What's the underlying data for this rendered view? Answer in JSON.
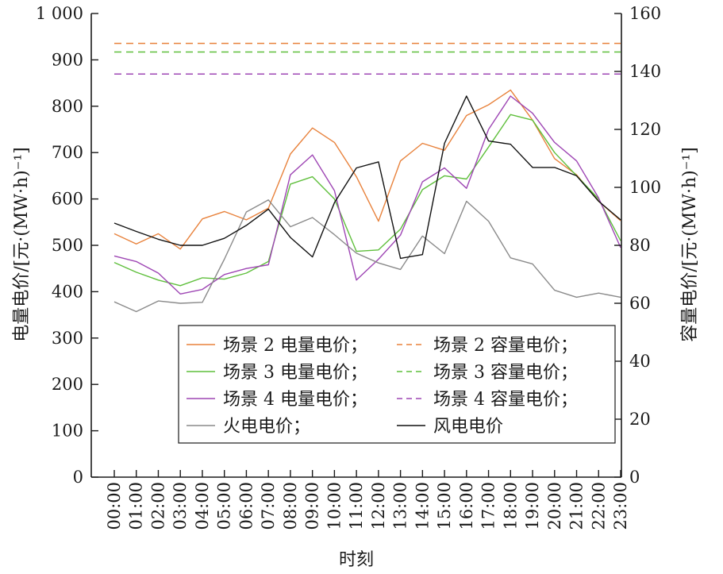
{
  "chart_data": {
    "type": "line",
    "xlabel": "时刻",
    "ylabel_left": "电量电价/[元·(MW·h)⁻¹]",
    "ylabel_right": "容量电价/[元·(MW·h)⁻¹]",
    "ylim_left": [
      0,
      1000
    ],
    "ylim_right": [
      0,
      160
    ],
    "yticks_left": [
      "0",
      "100",
      "200",
      "300",
      "400",
      "500",
      "600",
      "700",
      "800",
      "900",
      "1 000"
    ],
    "yticks_right": [
      "0",
      "20",
      "40",
      "60",
      "80",
      "100",
      "120",
      "140",
      "160"
    ],
    "categories": [
      "00:00",
      "01:00",
      "02:00",
      "03:00",
      "04:00",
      "05:00",
      "06:00",
      "07:00",
      "08:00",
      "09:00",
      "10:00",
      "11:00",
      "12:00",
      "13:00",
      "14:00",
      "15:00",
      "16:00",
      "17:00",
      "18:00",
      "19:00",
      "20:00",
      "21:00",
      "22:00",
      "23:00"
    ],
    "legend_position": "lower-right",
    "series": [
      {
        "name": "场景 2 电量电价；",
        "axis": "left",
        "style": "solid",
        "color": "#e8823c",
        "values": [
          525,
          503,
          525,
          492,
          557,
          573,
          555,
          580,
          697,
          753,
          722,
          648,
          552,
          682,
          720,
          705,
          780,
          803,
          835,
          770,
          687,
          652,
          595,
          553
        ]
      },
      {
        "name": "场景 3 电量电价；",
        "axis": "left",
        "style": "solid",
        "color": "#5fbf3c",
        "values": [
          463,
          442,
          425,
          413,
          430,
          427,
          440,
          465,
          632,
          648,
          600,
          487,
          490,
          535,
          620,
          650,
          643,
          712,
          782,
          770,
          700,
          650,
          600,
          510
        ]
      },
      {
        "name": "场景 4 电量电价；",
        "axis": "left",
        "style": "solid",
        "color": "#9e46b4",
        "values": [
          477,
          465,
          440,
          395,
          405,
          437,
          450,
          458,
          652,
          695,
          618,
          425,
          470,
          522,
          637,
          667,
          623,
          750,
          822,
          785,
          722,
          682,
          602,
          495
        ]
      },
      {
        "name": "火电电价；",
        "axis": "left",
        "style": "solid",
        "color": "#8a8a8a",
        "values": [
          378,
          357,
          380,
          375,
          377,
          470,
          572,
          598,
          540,
          560,
          523,
          483,
          462,
          448,
          520,
          482,
          595,
          552,
          473,
          460,
          403,
          388,
          397,
          388
        ]
      },
      {
        "name": "风电电价",
        "axis": "left",
        "style": "solid",
        "color": "#111111",
        "values": [
          548,
          530,
          513,
          500,
          500,
          515,
          543,
          578,
          517,
          475,
          592,
          667,
          680,
          472,
          480,
          720,
          822,
          725,
          718,
          668,
          668,
          650,
          595,
          555
        ]
      },
      {
        "name": "场景 2 容量电价；",
        "axis": "right",
        "style": "dashed",
        "color": "#e8823c",
        "values": [
          149.7,
          149.7,
          149.7,
          149.7,
          149.7,
          149.7,
          149.7,
          149.7,
          149.7,
          149.7,
          149.7,
          149.7,
          149.7,
          149.7,
          149.7,
          149.7,
          149.7,
          149.7,
          149.7,
          149.7,
          149.7,
          149.7,
          149.7,
          149.7
        ]
      },
      {
        "name": "场景 3 容量电价；",
        "axis": "right",
        "style": "dashed",
        "color": "#5fbf3c",
        "values": [
          146.7,
          146.7,
          146.7,
          146.7,
          146.7,
          146.7,
          146.7,
          146.7,
          146.7,
          146.7,
          146.7,
          146.7,
          146.7,
          146.7,
          146.7,
          146.7,
          146.7,
          146.7,
          146.7,
          146.7,
          146.7,
          146.7,
          146.7,
          146.7
        ]
      },
      {
        "name": "场景 4 容量电价；",
        "axis": "right",
        "style": "dashed",
        "color": "#9e46b4",
        "values": [
          139.1,
          139.1,
          139.1,
          139.1,
          139.1,
          139.1,
          139.1,
          139.1,
          139.1,
          139.1,
          139.1,
          139.1,
          139.1,
          139.1,
          139.1,
          139.1,
          139.1,
          139.1,
          139.1,
          139.1,
          139.1,
          139.1,
          139.1,
          139.1
        ]
      }
    ],
    "legend_order": [
      0,
      5,
      1,
      6,
      2,
      7,
      3,
      4
    ]
  }
}
